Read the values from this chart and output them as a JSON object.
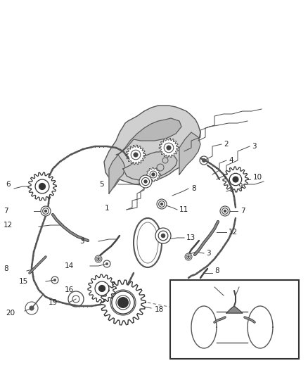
{
  "bg_color": "#ffffff",
  "lc": "#4a4a4a",
  "dc": "#222222",
  "figsize": [
    4.38,
    5.33
  ],
  "dpi": 100,
  "xlim": [
    0,
    438
  ],
  "ylim": [
    0,
    533
  ],
  "engine_color": "#cccccc",
  "chain_color": "#555555",
  "gear_color": "#444444",
  "label_fs": 7.5,
  "callout_lw": 0.7,
  "chain_lw": 1.8,
  "gear_lw": 0.9
}
